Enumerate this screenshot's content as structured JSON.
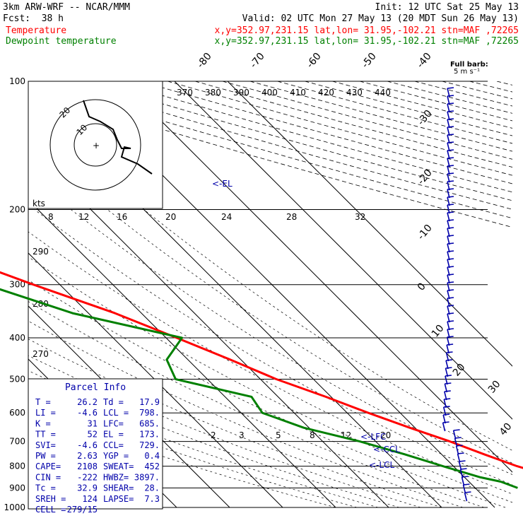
{
  "header": {
    "model": "3km ARW-WRF -- NCAR/MMM",
    "init": "Init: 12 UTC Sat 25 May 13",
    "fcst_label": "Fcst:",
    "fcst_value": "38 h",
    "valid": "Valid: 02 UTC Mon 27 May 13 (20 MDT Sun 26 May 13)",
    "series": [
      {
        "name": "Temperature",
        "info": "x,y=352.97,231.15   lat,lon= 31.95,-102.21   stn=MAF ,72265",
        "color": "#ff0000"
      },
      {
        "name": "Dewpoint temperature",
        "info": "x,y=352.97,231.15   lat,lon= 31.95,-102.21   stn=MAF ,72265",
        "color": "#008000"
      }
    ]
  },
  "colors": {
    "temperature": "#ff0000",
    "dewpoint": "#008000",
    "wind": "#0000aa",
    "hodograph": "#000000"
  },
  "barb_legend": {
    "title": "Full barb:",
    "value": "5 m s⁻¹"
  },
  "parcel_info": {
    "title": "Parcel Info",
    "rows": [
      [
        "T  =",
        "26.2",
        "Td =",
        "17.9"
      ],
      [
        "LI =",
        "-4.6",
        "LCL =",
        "798."
      ],
      [
        "K  =",
        "31",
        "LFC=",
        "685."
      ],
      [
        "TT =",
        "52",
        "EL =",
        "173."
      ],
      [
        "SVI=",
        "-4.6",
        "CCL=",
        "729."
      ],
      [
        "PW =",
        "2.63",
        "YGP =",
        "0.4"
      ],
      [
        "CAPE=",
        "2108",
        "SWEAT=",
        "452"
      ],
      [
        "CIN =",
        "-222",
        "HWBZ=",
        "3897."
      ],
      [
        "Tc =",
        "32.9",
        "SHEAR=",
        "28."
      ],
      [
        "SREH =",
        "124",
        "LAPSE=",
        "7.3"
      ],
      [
        "CELL =",
        "279/15",
        "",
        ""
      ]
    ]
  },
  "level_labels": {
    "el": "<-EL",
    "lfc": "<-LFC",
    "ccl": "<-CCL",
    "lcl": "<-LCL"
  },
  "hodograph": {
    "rings": [
      10,
      20
    ],
    "units": "kts"
  },
  "chart_data": {
    "type": "line",
    "title": "",
    "ylabel": "",
    "xlabel": "",
    "y_scale": "log",
    "ylim": [
      1000,
      100
    ],
    "pressure_ticks": [
      100,
      200,
      300,
      400,
      500,
      600,
      700,
      800,
      900,
      1000
    ],
    "temperature_ticks": [
      -80,
      -70,
      -60,
      -50,
      -40,
      -30,
      -20,
      -10,
      0,
      10,
      20,
      30,
      40
    ],
    "theta_labels": [
      370,
      380,
      390,
      400,
      410,
      420,
      430,
      440,
      290,
      280,
      270
    ],
    "mixing_ratio_labels": [
      8,
      12,
      16,
      20,
      24,
      28,
      32,
      2,
      3,
      5,
      8,
      12,
      20
    ],
    "series": [
      {
        "name": "Temperature",
        "p": [
          900,
          870,
          850,
          800,
          750,
          700,
          650,
          600,
          550,
          500,
          450,
          400,
          350,
          300,
          250,
          225,
          200,
          175,
          150,
          125,
          100
        ],
        "t": [
          32,
          28,
          27,
          22,
          18,
          14,
          9,
          4,
          -1,
          -7,
          -12,
          -18,
          -25,
          -35,
          -46,
          -51,
          -57,
          -60,
          -59,
          -56,
          -52
        ]
      },
      {
        "name": "Dewpoint temperature",
        "p": [
          900,
          870,
          850,
          800,
          750,
          700,
          650,
          600,
          550,
          500,
          450,
          400,
          350,
          300,
          250,
          225,
          200,
          175,
          150,
          125,
          100
        ],
        "t": [
          18,
          16,
          13,
          8,
          3,
          -3,
          -11,
          -16,
          -15,
          -26,
          -24,
          -17,
          -33,
          -44,
          -50,
          -52,
          -58,
          -68,
          -79,
          -87,
          -89
        ]
      }
    ]
  }
}
